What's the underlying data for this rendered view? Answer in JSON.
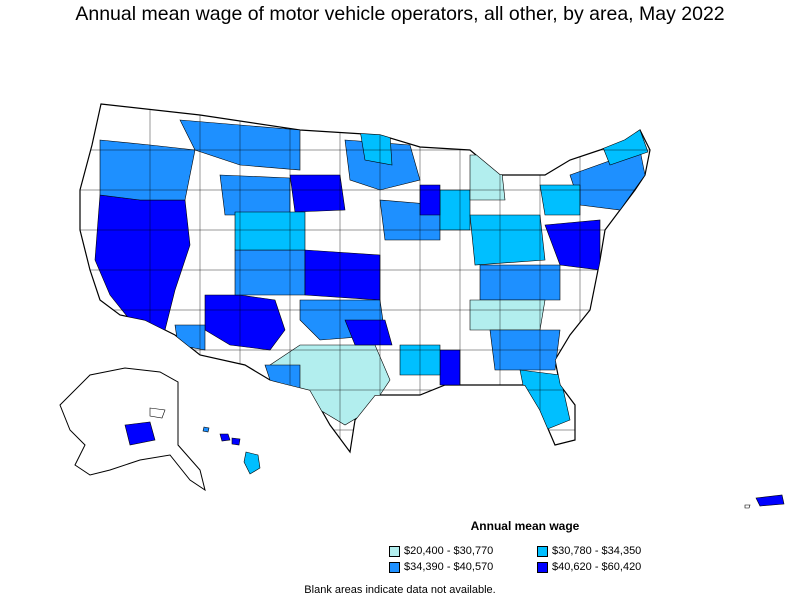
{
  "title": "Annual mean wage of motor vehicle operators, all other, by area, May 2022",
  "legend": {
    "title": "Annual mean wage",
    "items": [
      {
        "label": "$20,400 - $30,770",
        "color": "#b2eeee"
      },
      {
        "label": "$30,780 - $34,350",
        "color": "#00bfff"
      },
      {
        "label": "$34,390 - $40,570",
        "color": "#1e90ff"
      },
      {
        "label": "$40,620 - $60,420",
        "color": "#0000ff"
      }
    ]
  },
  "note": "Blank areas indicate data not available."
}
